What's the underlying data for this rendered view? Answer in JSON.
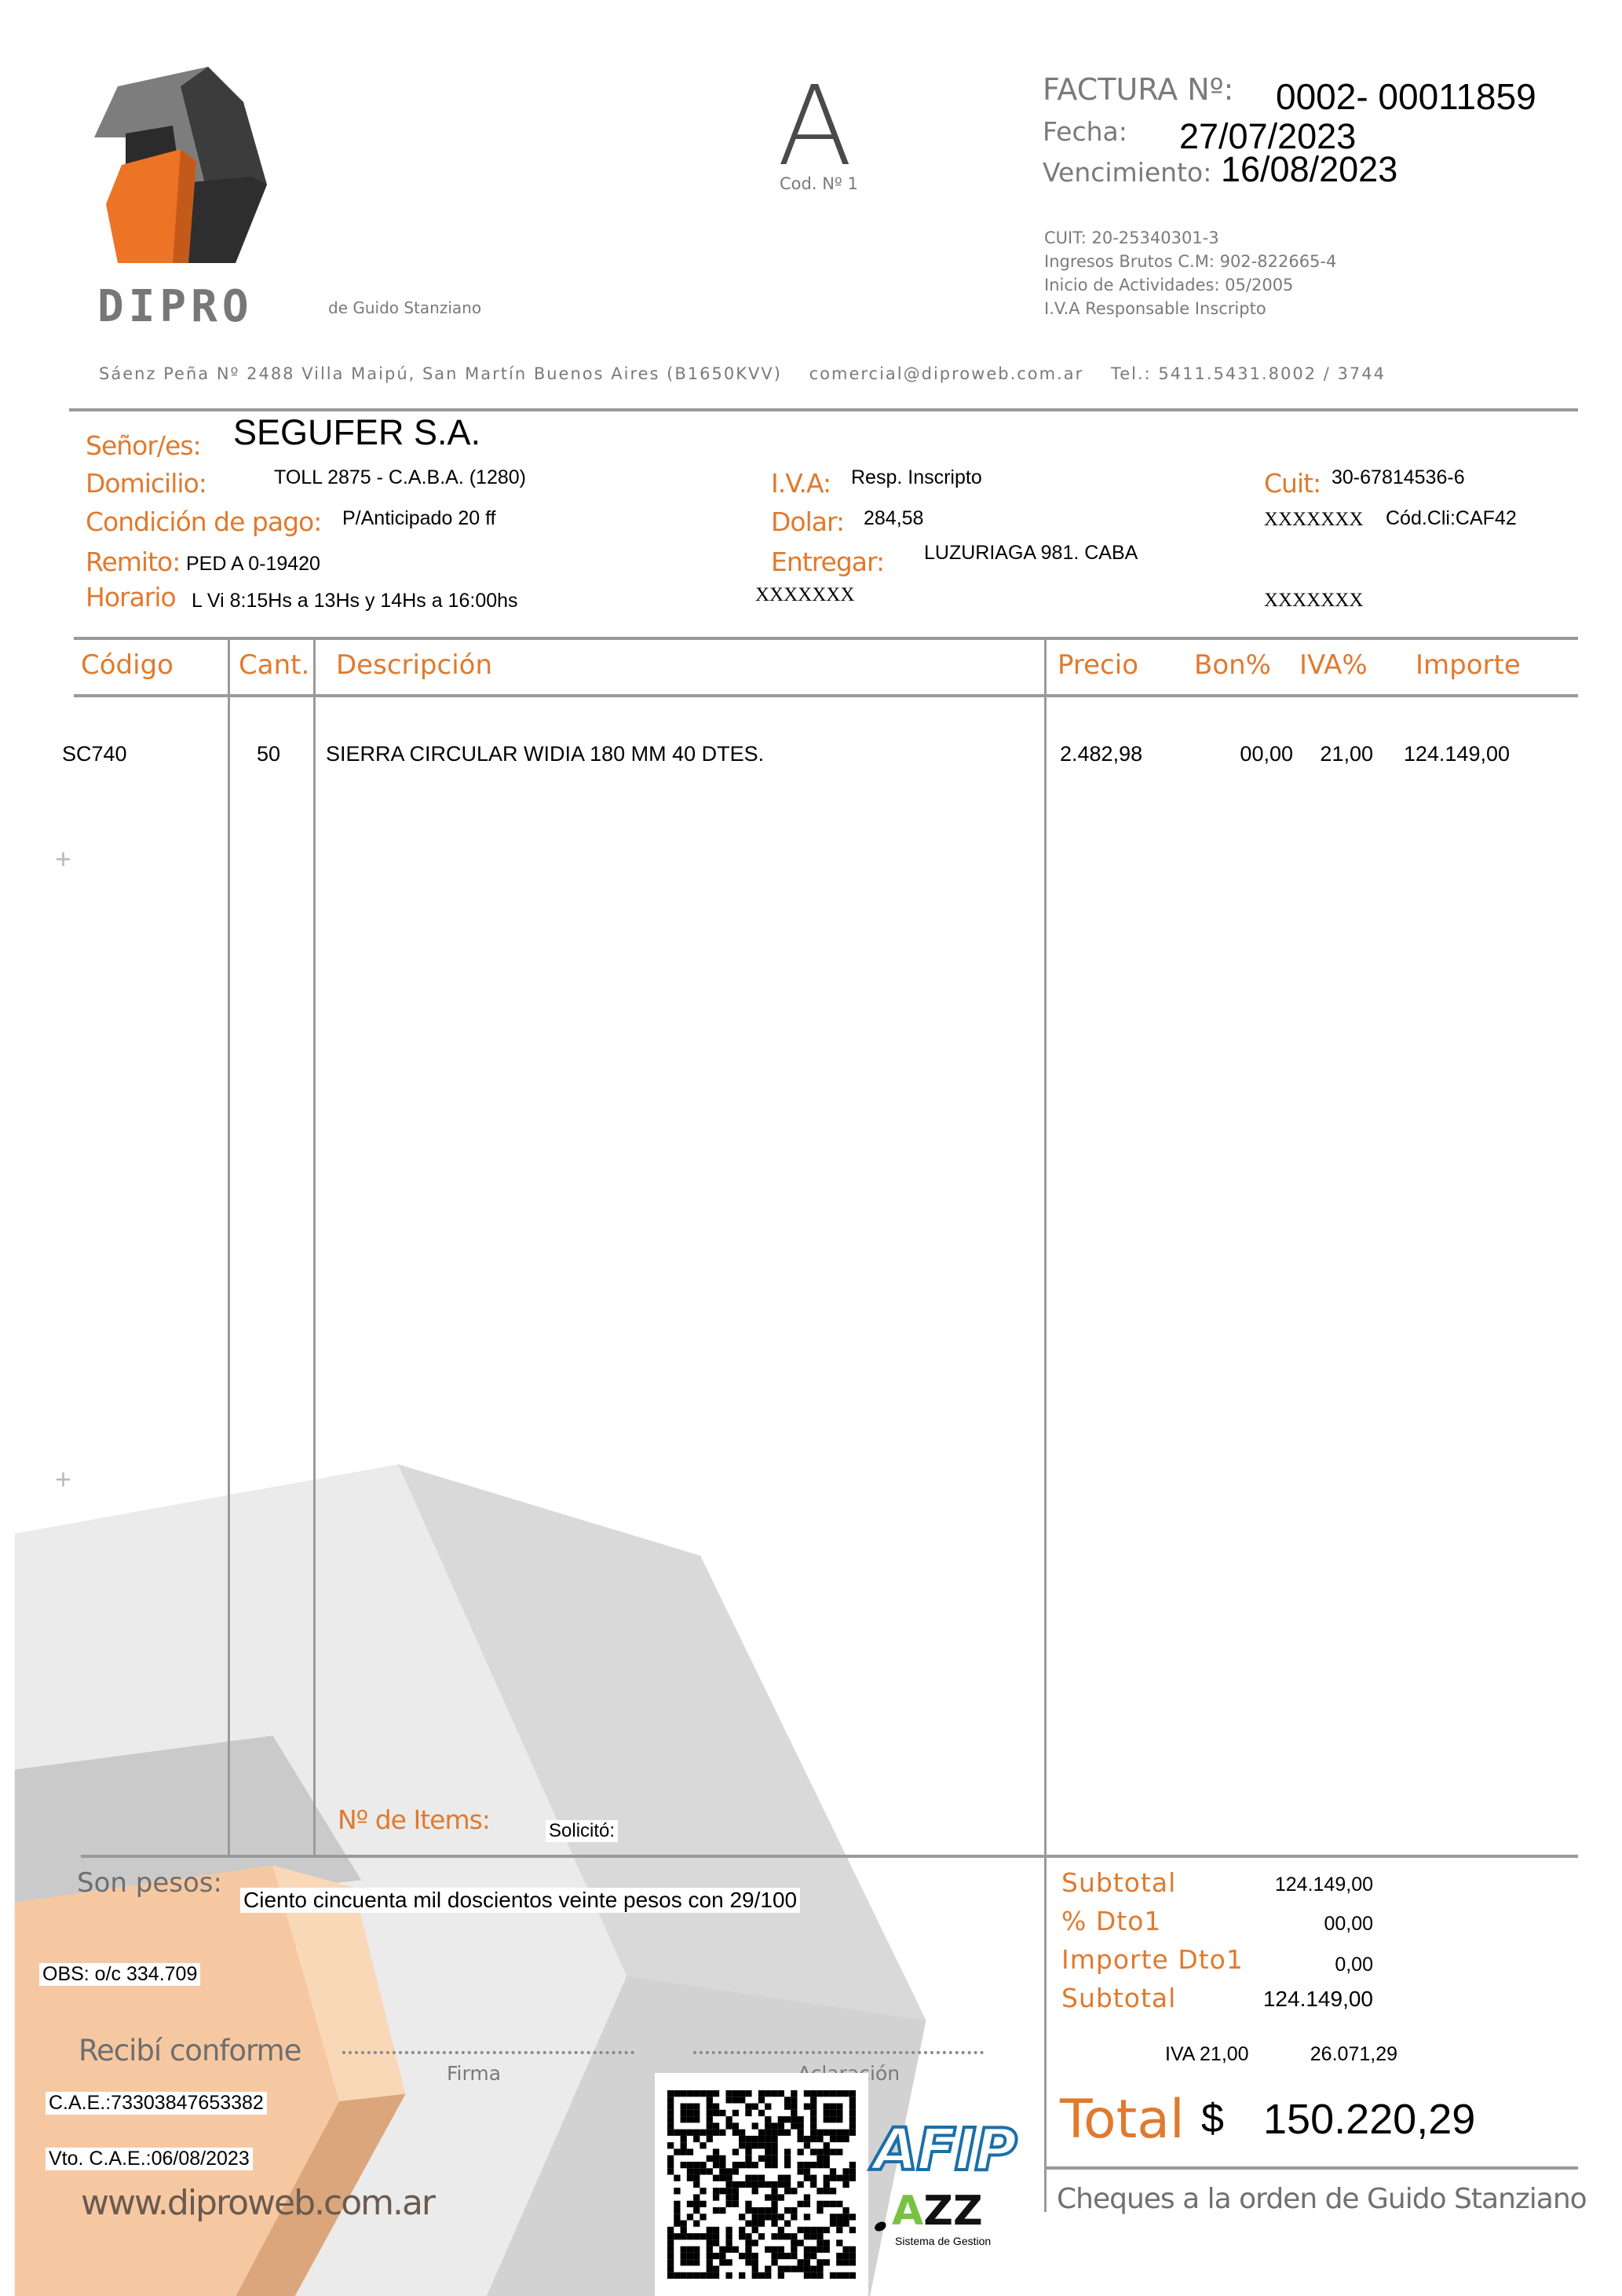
{
  "company": {
    "logo_text": "DIPRO",
    "tagline": "de Guido Stanziano",
    "invoice_letter": "A",
    "invoice_code": "Cod. Nº 1",
    "address_line": "Sáenz Peña Nº 2488 Villa Maipú, San Martín  Buenos Aires (B1650KVV)",
    "email": "comercial@diproweb.com.ar",
    "phone": "Tel.: 5411.5431.8002 / 3744",
    "tax_info": [
      "CUIT: 20-25340301-3",
      "Ingresos  Brutos  C.M: 902-822665-4",
      "Inicio de Actividades: 05/2005",
      "I.V.A Responsable Inscripto"
    ],
    "website": "www.diproweb.com.ar",
    "brand_orange": "#e07a2e"
  },
  "invoice": {
    "number_label": "FACTURA Nº:",
    "number": "0002-  00011859",
    "date_label": "Fecha:",
    "date": "27/07/2023",
    "due_label": "Vencimiento:",
    "due": "16/08/2023"
  },
  "customer": {
    "name_label": "Señor/es:",
    "name": "SEGUFER S.A.",
    "address_label": "Domicilio:",
    "address": "TOLL 2875 - C.A.B.A. (1280)",
    "iva_label": "I.V.A:",
    "iva": "Resp. Inscripto",
    "cuit_label": "Cuit:",
    "cuit": "30-67814536-6",
    "payment_label": "Condición de pago:",
    "payment": "P/Anticipado 20 ff",
    "dolar_label": "Dolar:",
    "dolar": "284,58",
    "mask1": "XXXXXXX",
    "client_code": "Cód.Cli:CAF42",
    "remito_label": "Remito:",
    "remito": "PED A 0-19420",
    "deliver_label": "Entregar:",
    "deliver": "LUZURIAGA 981. CABA",
    "hours_label": "Horario",
    "hours": "L Vi 8:15Hs a 13Hs y 14Hs a 16:00hs",
    "mask2": "XXXXXXX",
    "mask3": "XXXXXXX"
  },
  "table": {
    "headers": [
      "Código",
      "Cant.",
      "Descripción",
      "Precio",
      "Bon%",
      "IVA%",
      "Importe"
    ],
    "rows": [
      {
        "code": "SC740",
        "qty": "50",
        "desc": "SIERRA CIRCULAR WIDIA 180 MM 40 DTES.",
        "price": "2.482,98",
        "bon": "00,00",
        "iva": "21,00",
        "amount": "124.149,00"
      }
    ],
    "items_label": "Nº de Items:",
    "requested_label": "Solicitó:"
  },
  "footer": {
    "words_label": "Son pesos:",
    "words": "Ciento cincuenta mil doscientos veinte pesos con  29/100",
    "obs": "OBS: o/c 334.709",
    "received_label": "Recibí conforme",
    "signature_label": "Firma",
    "clarification_label": "Aclaración",
    "cae": "C.A.E.:73303847653382",
    "cae_due": "Vto. C.A.E.:06/08/2023",
    "afip_logo": "AFIP",
    "jazz_logo": "JAZZ",
    "jazz_sub": "Sistema de Gestion"
  },
  "totals": {
    "subtotal_label": "Subtotal",
    "subtotal": "124.149,00",
    "disc_pct_label": "% Dto1",
    "disc_pct": "00,00",
    "disc_amt_label": "Importe  Dto1",
    "disc_amt": "0,00",
    "subtotal2_label": "Subtotal",
    "subtotal2": "124.149,00",
    "iva_label": "IVA  21,00",
    "iva_amount": "26.071,29",
    "total_label": "Total",
    "currency": "$",
    "total": "150.220,29",
    "cheques": "Cheques a la orden de Guido Stanziano"
  }
}
